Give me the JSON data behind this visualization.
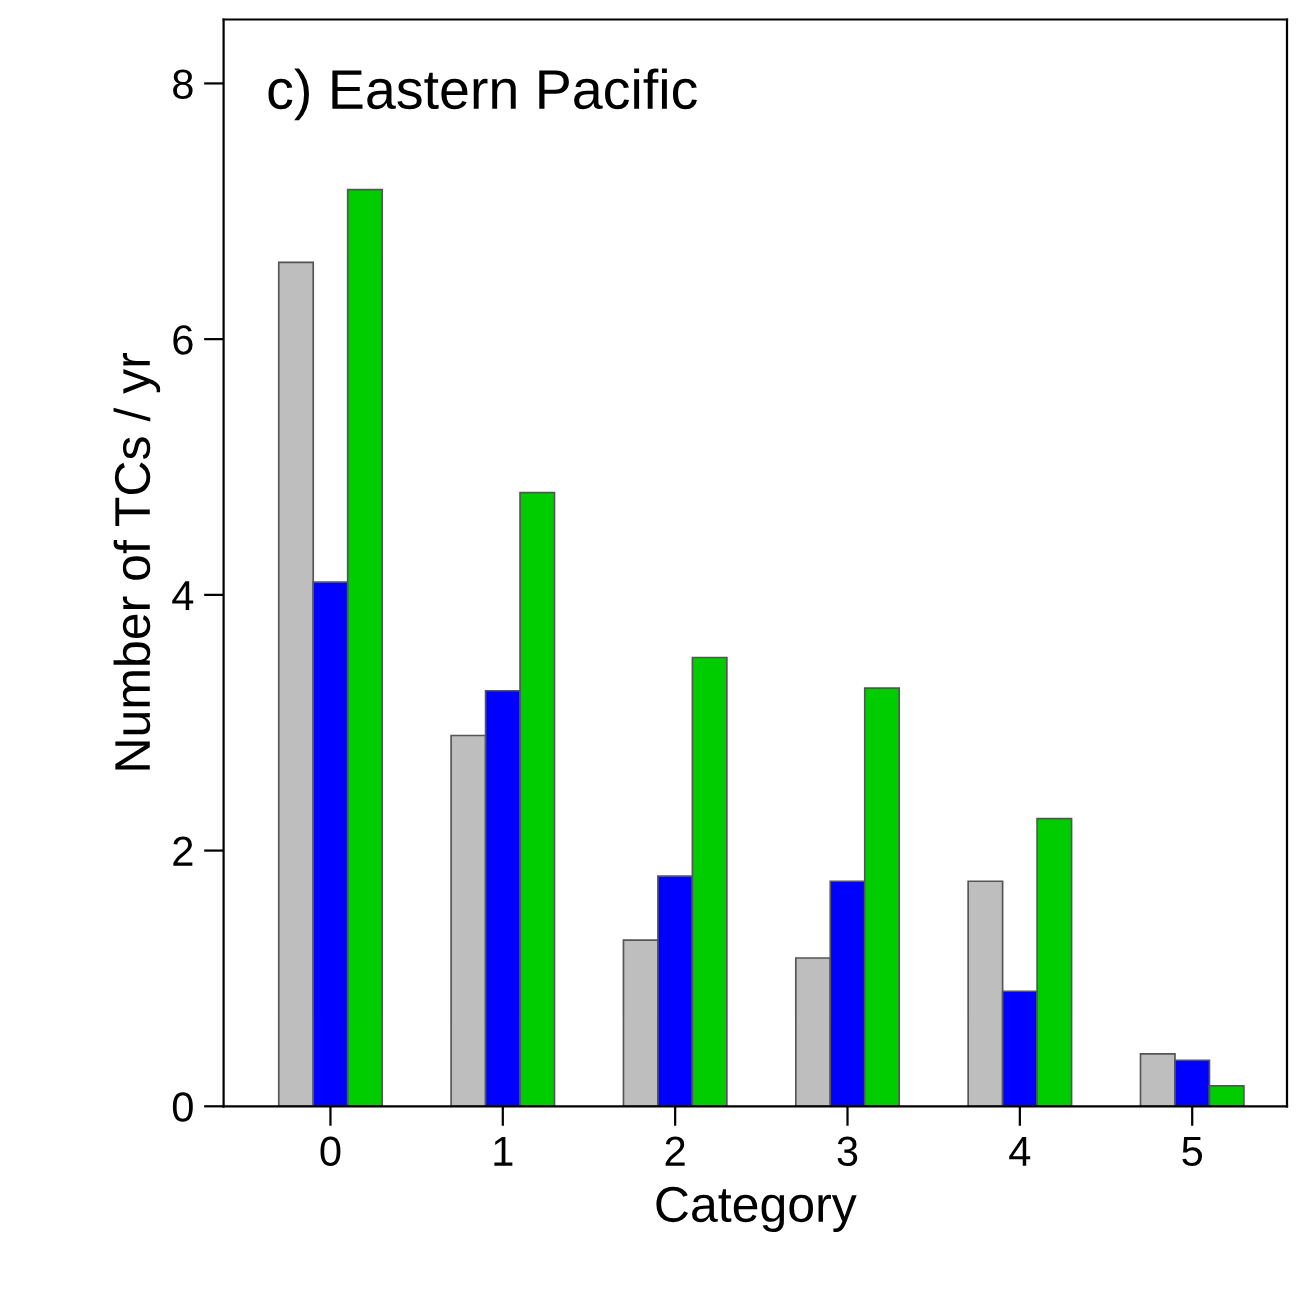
{
  "chart_data": {
    "type": "bar",
    "title": "c) Eastern Pacific",
    "xlabel": "Category",
    "ylabel": "Number of TCs / yr",
    "categories": [
      "0",
      "1",
      "2",
      "3",
      "4",
      "5"
    ],
    "series": [
      {
        "color": "#bebebe",
        "values": [
          6.6,
          2.9,
          1.3,
          1.16,
          1.76,
          0.41
        ]
      },
      {
        "color": "#0000ff",
        "values": [
          4.1,
          3.25,
          1.8,
          1.76,
          0.9,
          0.36
        ]
      },
      {
        "color": "#00cd00",
        "values": [
          7.17,
          4.8,
          3.51,
          3.27,
          2.25,
          0.16
        ]
      }
    ],
    "ylim": [
      0,
      8.5
    ],
    "yticks": [
      0,
      2,
      4,
      6,
      8
    ],
    "grid": false,
    "legend": false
  }
}
